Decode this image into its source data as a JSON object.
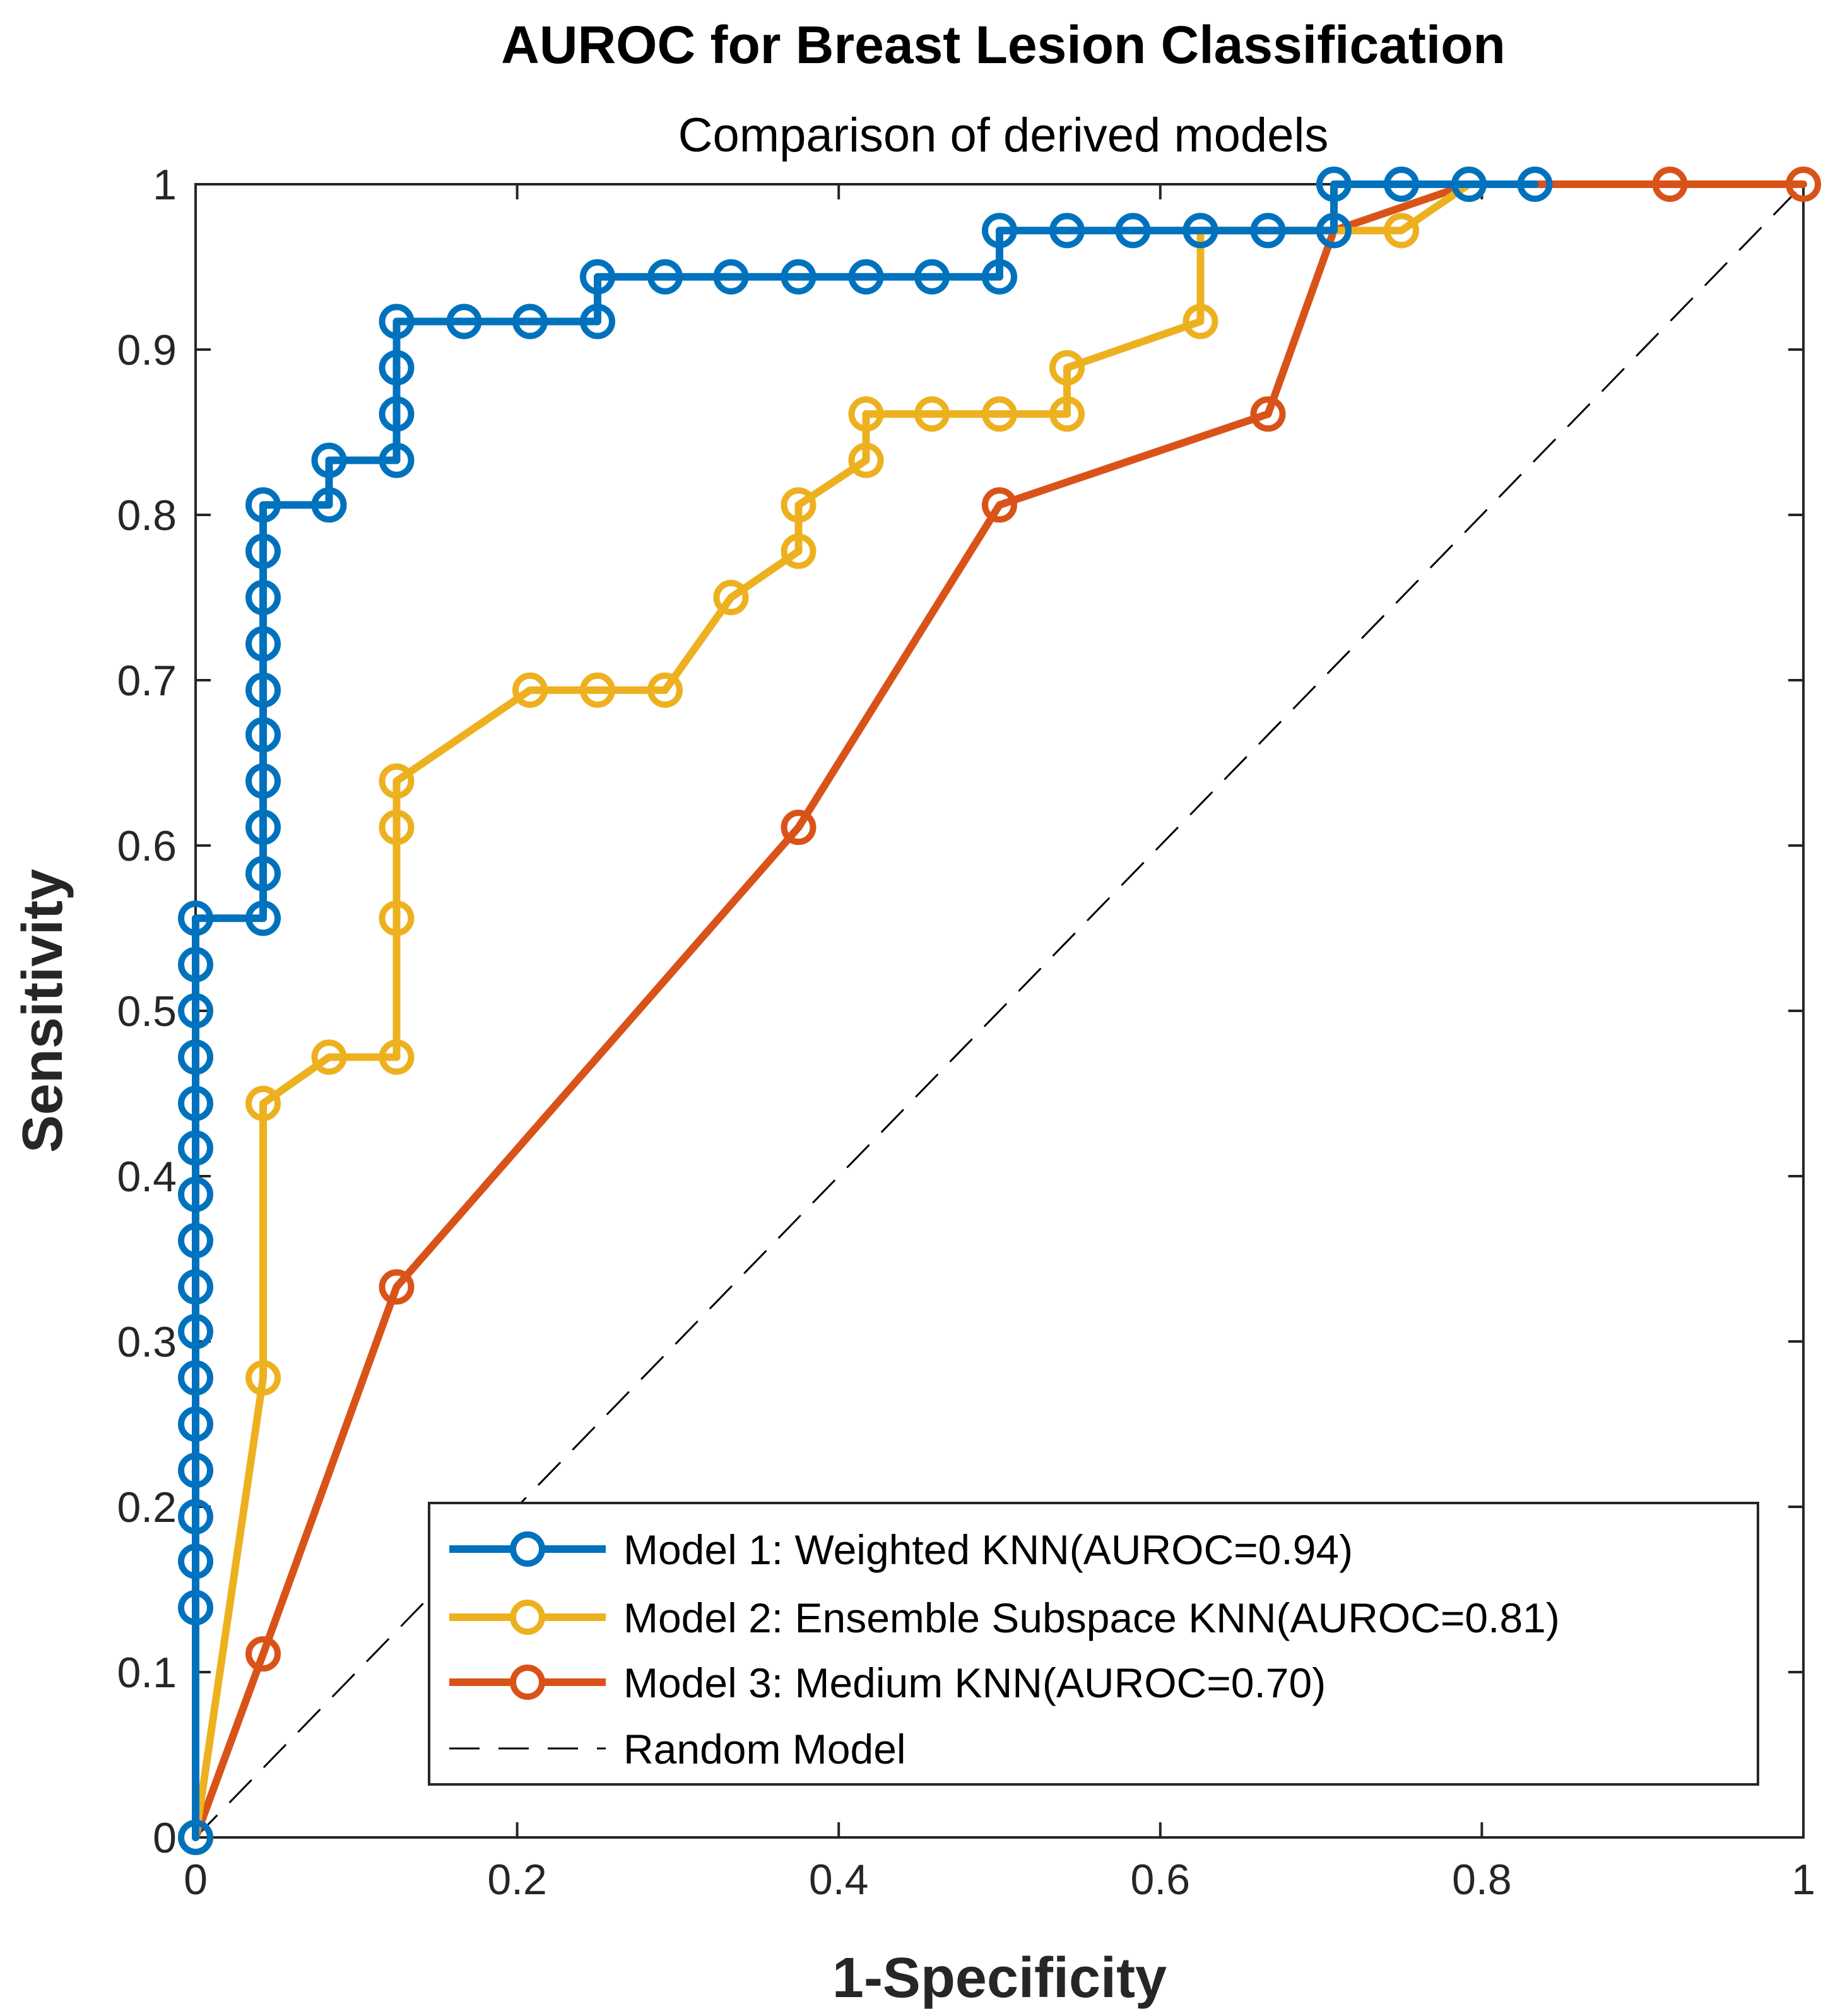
{
  "chart_data": {
    "type": "line",
    "title": "AUROC for Breast Lesion Classification",
    "subtitle": "Comparison of derived models",
    "xlabel": "1-Specificity",
    "ylabel": "Sensitivity",
    "xlim": [
      0,
      1
    ],
    "ylim": [
      0,
      1
    ],
    "xticks": [
      0,
      0.2,
      0.4,
      0.6,
      0.8,
      1
    ],
    "xtick_labels": [
      "0",
      "0.2",
      "0.4",
      "0.6",
      "0.8",
      "1"
    ],
    "yticks": [
      0,
      0.1,
      0.2,
      0.3,
      0.4,
      0.5,
      0.6,
      0.7,
      0.8,
      0.9,
      1
    ],
    "ytick_labels": [
      "0",
      "0.1",
      "0.2",
      "0.3",
      "0.4",
      "0.5",
      "0.6",
      "0.7",
      "0.8",
      "0.9",
      "1"
    ],
    "grid": false,
    "legend_position": "bottom-right",
    "series": [
      {
        "name": "Model 1: Weighted KNN(AUROC=0.94)",
        "color": "#0072BD",
        "marker": "circle",
        "points": [
          [
            0,
            0
          ],
          [
            0,
            0.139
          ],
          [
            0,
            0.167
          ],
          [
            0,
            0.194
          ],
          [
            0,
            0.222
          ],
          [
            0,
            0.25
          ],
          [
            0,
            0.278
          ],
          [
            0,
            0.306
          ],
          [
            0,
            0.333
          ],
          [
            0,
            0.361
          ],
          [
            0,
            0.389
          ],
          [
            0,
            0.417
          ],
          [
            0,
            0.444
          ],
          [
            0,
            0.472
          ],
          [
            0,
            0.5
          ],
          [
            0,
            0.528
          ],
          [
            0,
            0.556
          ],
          [
            0.042,
            0.556
          ],
          [
            0.042,
            0.583
          ],
          [
            0.042,
            0.611
          ],
          [
            0.042,
            0.639
          ],
          [
            0.042,
            0.667
          ],
          [
            0.042,
            0.694
          ],
          [
            0.042,
            0.722
          ],
          [
            0.042,
            0.75
          ],
          [
            0.042,
            0.778
          ],
          [
            0.042,
            0.806
          ],
          [
            0.083,
            0.806
          ],
          [
            0.083,
            0.833
          ],
          [
            0.125,
            0.833
          ],
          [
            0.125,
            0.861
          ],
          [
            0.125,
            0.889
          ],
          [
            0.125,
            0.917
          ],
          [
            0.167,
            0.917
          ],
          [
            0.208,
            0.917
          ],
          [
            0.25,
            0.917
          ],
          [
            0.25,
            0.944
          ],
          [
            0.292,
            0.944
          ],
          [
            0.333,
            0.944
          ],
          [
            0.375,
            0.944
          ],
          [
            0.417,
            0.944
          ],
          [
            0.458,
            0.944
          ],
          [
            0.5,
            0.944
          ],
          [
            0.5,
            0.972
          ],
          [
            0.542,
            0.972
          ],
          [
            0.583,
            0.972
          ],
          [
            0.625,
            0.972
          ],
          [
            0.667,
            0.972
          ],
          [
            0.708,
            0.972
          ],
          [
            0.708,
            1
          ],
          [
            0.75,
            1
          ],
          [
            0.792,
            1
          ],
          [
            0.833,
            1
          ]
        ]
      },
      {
        "name": "Model 2: Ensemble Subspace KNN(AUROC=0.81)",
        "color": "#EDB120",
        "marker": "circle",
        "points": [
          [
            0,
            0
          ],
          [
            0.042,
            0.278
          ],
          [
            0.042,
            0.444
          ],
          [
            0.083,
            0.472
          ],
          [
            0.125,
            0.472
          ],
          [
            0.125,
            0.556
          ],
          [
            0.125,
            0.611
          ],
          [
            0.125,
            0.639
          ],
          [
            0.208,
            0.694
          ],
          [
            0.25,
            0.694
          ],
          [
            0.292,
            0.694
          ],
          [
            0.333,
            0.75
          ],
          [
            0.375,
            0.778
          ],
          [
            0.375,
            0.806
          ],
          [
            0.417,
            0.833
          ],
          [
            0.417,
            0.861
          ],
          [
            0.458,
            0.861
          ],
          [
            0.5,
            0.861
          ],
          [
            0.542,
            0.861
          ],
          [
            0.542,
            0.889
          ],
          [
            0.625,
            0.917
          ],
          [
            0.625,
            0.972
          ],
          [
            0.75,
            0.972
          ],
          [
            0.792,
            1
          ]
        ]
      },
      {
        "name": "Model 3: Medium KNN(AUROC=0.70)",
        "color": "#D95319",
        "marker": "circle",
        "points": [
          [
            0,
            0
          ],
          [
            0.042,
            0.111
          ],
          [
            0.125,
            0.333
          ],
          [
            0.375,
            0.611
          ],
          [
            0.5,
            0.806
          ],
          [
            0.667,
            0.861
          ],
          [
            0.708,
            0.972
          ],
          [
            0.792,
            1
          ],
          [
            0.917,
            1
          ],
          [
            1,
            1
          ]
        ]
      },
      {
        "name": "Random Model",
        "color": "#000000",
        "marker": "none",
        "dashed": true,
        "points": [
          [
            0,
            0
          ],
          [
            1,
            1
          ]
        ]
      }
    ]
  }
}
